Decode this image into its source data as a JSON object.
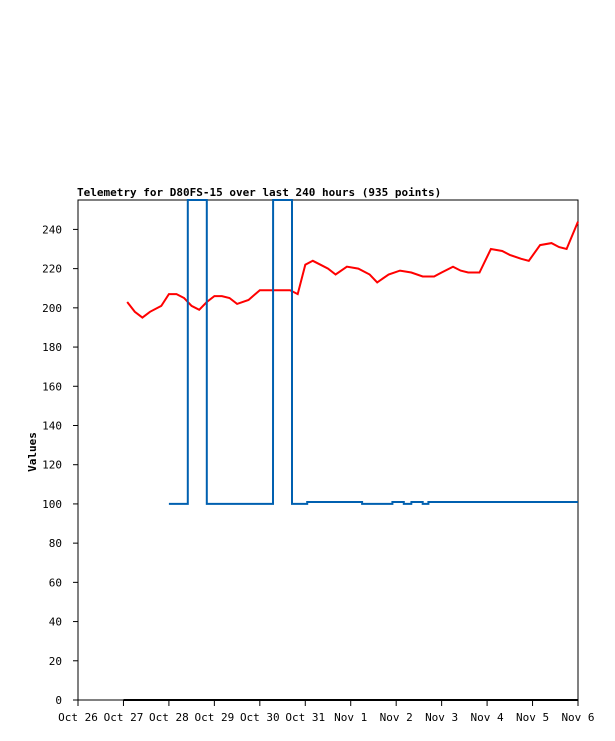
{
  "chart_data": {
    "type": "line",
    "title": "Telemetry for D80FS-15 over last 240 hours (935 points)",
    "ylabel": "Values",
    "xlabel": "",
    "ylim": [
      0,
      255
    ],
    "xlim_days": [
      "Oct 26",
      "Nov 6"
    ],
    "x_ticks": [
      "Oct 26",
      "Oct 27",
      "Oct 28",
      "Oct 29",
      "Oct 30",
      "Oct 31",
      "Nov 1",
      "Nov 2",
      "Nov 3",
      "Nov 4",
      "Nov 5",
      "Nov 6"
    ],
    "y_ticks": [
      0,
      20,
      40,
      60,
      80,
      100,
      120,
      140,
      160,
      180,
      200,
      220,
      240
    ],
    "grid": false,
    "series": [
      {
        "color": "#ff0000",
        "x": [
          "Oct 27 02:00",
          "Oct 27 06:00",
          "Oct 27 10:00",
          "Oct 27 14:00",
          "Oct 27 20:00",
          "Oct 28 00:00",
          "Oct 28 04:00",
          "Oct 28 08:00",
          "Oct 28 12:00",
          "Oct 28 16:00",
          "Oct 28 20:00",
          "Oct 29 00:00",
          "Oct 29 04:00",
          "Oct 29 08:00",
          "Oct 29 12:00",
          "Oct 29 18:00",
          "Oct 30 00:00",
          "Oct 30 06:00",
          "Oct 30 12:00",
          "Oct 30 16:00",
          "Oct 30 20:00",
          "Oct 31 00:00",
          "Oct 31 04:00",
          "Oct 31 08:00",
          "Oct 31 12:00",
          "Oct 31 16:00",
          "Oct 31 22:00",
          "Nov 1 04:00",
          "Nov 1 10:00",
          "Nov 1 14:00",
          "Nov 1 20:00",
          "Nov 2 02:00",
          "Nov 2 08:00",
          "Nov 2 14:00",
          "Nov 2 20:00",
          "Nov 3 00:00",
          "Nov 3 06:00",
          "Nov 3 10:00",
          "Nov 3 14:00",
          "Nov 3 20:00",
          "Nov 4 02:00",
          "Nov 4 08:00",
          "Nov 4 12:00",
          "Nov 4 18:00",
          "Nov 4 22:00",
          "Nov 5 04:00",
          "Nov 5 10:00",
          "Nov 5 14:00",
          "Nov 5 18:00",
          "Nov 6 00:00"
        ],
        "values": [
          203,
          198,
          195,
          198,
          201,
          207,
          207,
          205,
          201,
          199,
          203,
          206,
          206,
          205,
          202,
          204,
          209,
          209,
          209,
          209,
          207,
          222,
          224,
          222,
          220,
          217,
          221,
          220,
          217,
          213,
          217,
          219,
          218,
          216,
          216,
          218,
          221,
          219,
          218,
          218,
          230,
          229,
          227,
          225,
          224,
          232,
          233,
          231,
          230,
          244
        ]
      },
      {
        "color": "#0060b0",
        "x": [
          "Oct 28 00:00",
          "Oct 28 09:59",
          "Oct 28 10:00",
          "Oct 28 19:59",
          "Oct 28 20:00",
          "Oct 30 06:59",
          "Oct 30 07:00",
          "Oct 30 16:59",
          "Oct 30 17:00",
          "Oct 31 01:00",
          "Oct 31 01:01",
          "Nov 1 06:00",
          "Nov 1 06:01",
          "Nov 1 22:00",
          "Nov 1 22:01",
          "Nov 2 04:00",
          "Nov 2 04:01",
          "Nov 2 08:00",
          "Nov 2 08:01",
          "Nov 2 14:00",
          "Nov 2 14:01",
          "Nov 2 17:00",
          "Nov 2 17:01",
          "Nov 2 20:00",
          "Nov 2 20:01",
          "Nov 6 00:00"
        ],
        "values": [
          100,
          100,
          255,
          255,
          100,
          100,
          255,
          255,
          100,
          100,
          101,
          101,
          100,
          100,
          101,
          101,
          100,
          100,
          101,
          101,
          100,
          100,
          101,
          101,
          101,
          101
        ]
      },
      {
        "color": "#000000",
        "x": [
          "Oct 27 00:00",
          "Nov 6 00:00"
        ],
        "values": [
          0,
          0
        ]
      }
    ]
  }
}
